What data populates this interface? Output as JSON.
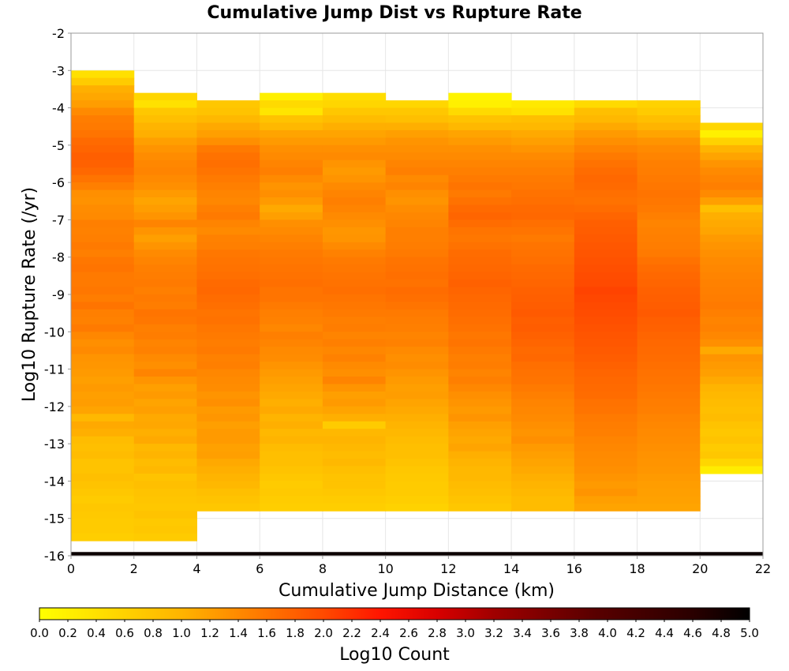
{
  "chart_data": {
    "type": "heatmap",
    "title": "Cumulative Jump Dist vs Rupture Rate",
    "xlabel": "Cumulative Jump Distance (km)",
    "ylabel": "Log10 Rupture Rate (/yr)",
    "colorbar_label": "Log10 Count",
    "xlim": [
      0,
      22
    ],
    "ylim": [
      -16,
      -2
    ],
    "x_ticks": [
      "0",
      "2",
      "4",
      "6",
      "8",
      "10",
      "12",
      "14",
      "16",
      "18",
      "20",
      "22"
    ],
    "y_ticks": [
      "-2",
      "-3",
      "-4",
      "-5",
      "-6",
      "-7",
      "-8",
      "-9",
      "-10",
      "-11",
      "-12",
      "-13",
      "-14",
      "-15",
      "-16"
    ],
    "colorbar_ticks": [
      "0.0",
      "0.2",
      "0.4",
      "0.6",
      "0.8",
      "1.0",
      "1.2",
      "1.4",
      "1.6",
      "1.8",
      "2.0",
      "2.2",
      "2.4",
      "2.6",
      "2.8",
      "3.0",
      "3.2",
      "3.4",
      "3.6",
      "3.8",
      "4.0",
      "4.2",
      "4.4",
      "4.6",
      "4.8",
      "5.0"
    ],
    "color_range": [
      0,
      5
    ],
    "grid": true,
    "x_bin_edges": [
      0,
      2,
      4,
      6,
      8,
      10,
      12,
      14,
      16,
      18,
      20,
      22
    ],
    "y_bin_size": 0.2,
    "columns": [
      {
        "x_start": 0,
        "x_end": 2,
        "top_rate": -3.0,
        "values": [
          0.42,
          0.7,
          1.05,
          1.12,
          1.22,
          1.4,
          1.52,
          1.55,
          1.6,
          1.7,
          1.75,
          1.8,
          1.78,
          1.72,
          1.6,
          1.5,
          1.35,
          1.32,
          1.38,
          1.4,
          1.5,
          1.48,
          1.5,
          1.55,
          1.5,
          1.58,
          1.6,
          1.55,
          1.55,
          1.58,
          1.52,
          1.6,
          1.5,
          1.48,
          1.55,
          1.42,
          1.35,
          1.4,
          1.3,
          1.28,
          1.25,
          1.2,
          1.25,
          1.2,
          1.22,
          1.15,
          0.95,
          1.1,
          1.05,
          0.9,
          0.85,
          0.9,
          0.8,
          0.8,
          0.85,
          0.8,
          0.75,
          0.7,
          0.75,
          0.72,
          0.7,
          0.7,
          0.65
        ]
      },
      {
        "x_start": 2,
        "x_end": 4,
        "top_rate": -3.6,
        "values": [
          0.55,
          0.4,
          0.75,
          0.85,
          1.0,
          1.05,
          1.2,
          1.3,
          1.38,
          1.42,
          1.45,
          1.4,
          1.35,
          1.25,
          1.15,
          1.22,
          1.3,
          1.45,
          1.3,
          1.2,
          1.3,
          1.4,
          1.45,
          1.5,
          1.52,
          1.55,
          1.5,
          1.55,
          1.52,
          1.6,
          1.58,
          1.5,
          1.52,
          1.45,
          1.48,
          1.4,
          1.35,
          1.45,
          1.3,
          1.2,
          1.25,
          1.15,
          1.2,
          1.1,
          1.12,
          1.05,
          1.1,
          0.95,
          1.0,
          0.9,
          0.95,
          0.8,
          0.85,
          0.8,
          0.78,
          0.75,
          0.8,
          0.72,
          0.75,
          0.7
        ]
      },
      {
        "x_start": 4,
        "x_end": 6,
        "top_rate": -3.8,
        "values": [
          0.75,
          0.8,
          0.95,
          1.1,
          1.2,
          1.35,
          1.55,
          1.62,
          1.65,
          1.6,
          1.55,
          1.5,
          1.45,
          1.42,
          1.5,
          1.55,
          1.45,
          1.4,
          1.48,
          1.5,
          1.58,
          1.6,
          1.62,
          1.65,
          1.7,
          1.72,
          1.68,
          1.65,
          1.6,
          1.62,
          1.58,
          1.55,
          1.52,
          1.55,
          1.48,
          1.5,
          1.42,
          1.4,
          1.38,
          1.3,
          1.35,
          1.25,
          1.28,
          1.2,
          1.25,
          1.25,
          1.18,
          1.2,
          1.1,
          1.05,
          1.0,
          0.95,
          0.85,
          0.8,
          0.75
        ]
      },
      {
        "x_start": 6,
        "x_end": 8,
        "top_rate": -3.6,
        "values": [
          0.2,
          0.5,
          0.35,
          0.8,
          0.95,
          1.15,
          1.25,
          1.35,
          1.4,
          1.45,
          1.5,
          1.4,
          1.3,
          1.35,
          1.25,
          1.1,
          1.2,
          1.35,
          1.4,
          1.45,
          1.5,
          1.55,
          1.58,
          1.6,
          1.62,
          1.65,
          1.6,
          1.6,
          1.55,
          1.5,
          1.48,
          1.42,
          1.5,
          1.45,
          1.4,
          1.38,
          1.3,
          1.25,
          1.2,
          1.15,
          1.1,
          1.05,
          1.1,
          1.0,
          1.05,
          0.95,
          1.0,
          0.9,
          0.85,
          0.85,
          0.8,
          0.75,
          0.7,
          0.72,
          0.68,
          0.65
        ]
      },
      {
        "x_start": 8,
        "x_end": 10,
        "top_rate": -3.6,
        "values": [
          0.45,
          0.55,
          0.75,
          0.9,
          1.05,
          1.15,
          1.25,
          1.35,
          1.4,
          1.3,
          1.25,
          1.3,
          1.4,
          1.45,
          1.5,
          1.45,
          1.4,
          1.35,
          1.28,
          1.3,
          1.4,
          1.48,
          1.55,
          1.58,
          1.6,
          1.62,
          1.65,
          1.6,
          1.58,
          1.55,
          1.5,
          1.52,
          1.45,
          1.5,
          1.42,
          1.48,
          1.4,
          1.35,
          1.45,
          1.3,
          1.2,
          1.25,
          1.15,
          1.05,
          0.7,
          0.95,
          1.0,
          0.95,
          0.9,
          0.95,
          0.85,
          0.8,
          0.8,
          0.75,
          0.7,
          0.65
        ]
      },
      {
        "x_start": 10,
        "x_end": 12,
        "top_rate": -3.8,
        "values": [
          0.55,
          0.75,
          0.85,
          1.05,
          1.2,
          1.3,
          1.35,
          1.4,
          1.45,
          1.5,
          1.4,
          1.45,
          1.35,
          1.3,
          1.38,
          1.42,
          1.45,
          1.5,
          1.5,
          1.52,
          1.55,
          1.6,
          1.62,
          1.65,
          1.62,
          1.68,
          1.65,
          1.6,
          1.55,
          1.52,
          1.5,
          1.45,
          1.48,
          1.4,
          1.35,
          1.38,
          1.3,
          1.25,
          1.2,
          1.22,
          1.15,
          1.1,
          1.05,
          1.0,
          0.95,
          0.9,
          0.85,
          0.85,
          0.8,
          0.75,
          0.72,
          0.7,
          0.7,
          0.65,
          0.6
        ]
      },
      {
        "x_start": 12,
        "x_end": 14,
        "top_rate": -3.6,
        "values": [
          0.15,
          0.2,
          0.5,
          0.8,
          0.95,
          1.15,
          1.25,
          1.35,
          1.4,
          1.45,
          1.5,
          1.55,
          1.6,
          1.55,
          1.62,
          1.7,
          1.75,
          1.68,
          1.6,
          1.58,
          1.62,
          1.68,
          1.7,
          1.72,
          1.75,
          1.78,
          1.75,
          1.72,
          1.7,
          1.68,
          1.65,
          1.62,
          1.58,
          1.6,
          1.55,
          1.5,
          1.52,
          1.45,
          1.5,
          1.42,
          1.35,
          1.3,
          1.25,
          1.3,
          1.2,
          1.15,
          1.1,
          1.15,
          1.05,
          1.0,
          0.95,
          0.95,
          0.9,
          0.85,
          0.8,
          0.75
        ]
      },
      {
        "x_start": 14,
        "x_end": 16,
        "top_rate": -3.8,
        "values": [
          0.3,
          0.4,
          0.85,
          0.95,
          1.1,
          1.2,
          1.3,
          1.4,
          1.45,
          1.5,
          1.55,
          1.58,
          1.62,
          1.65,
          1.7,
          1.72,
          1.65,
          1.6,
          1.55,
          1.6,
          1.62,
          1.65,
          1.7,
          1.72,
          1.75,
          1.78,
          1.8,
          1.82,
          1.85,
          1.8,
          1.82,
          1.78,
          1.75,
          1.7,
          1.72,
          1.65,
          1.62,
          1.6,
          1.55,
          1.5,
          1.45,
          1.42,
          1.4,
          1.35,
          1.3,
          1.35,
          1.25,
          1.2,
          1.15,
          1.1,
          1.05,
          1.0,
          0.95,
          0.9,
          0.9
        ]
      },
      {
        "x_start": 16,
        "x_end": 18,
        "top_rate": -3.8,
        "values": [
          0.5,
          0.85,
          0.95,
          1.1,
          1.25,
          1.35,
          1.45,
          1.55,
          1.62,
          1.68,
          1.72,
          1.7,
          1.65,
          1.62,
          1.68,
          1.75,
          1.8,
          1.82,
          1.85,
          1.88,
          1.9,
          1.92,
          1.95,
          1.98,
          2.0,
          2.05,
          2.02,
          2.0,
          1.98,
          1.95,
          1.92,
          1.9,
          1.88,
          1.85,
          1.82,
          1.78,
          1.75,
          1.72,
          1.7,
          1.68,
          1.62,
          1.6,
          1.55,
          1.52,
          1.5,
          1.45,
          1.42,
          1.4,
          1.38,
          1.35,
          1.3,
          1.25,
          1.3,
          1.2,
          1.15
        ]
      },
      {
        "x_start": 18,
        "x_end": 20,
        "top_rate": -3.8,
        "values": [
          0.6,
          0.7,
          0.85,
          1.0,
          1.15,
          1.3,
          1.4,
          1.45,
          1.5,
          1.52,
          1.55,
          1.58,
          1.6,
          1.58,
          1.55,
          1.5,
          1.45,
          1.48,
          1.5,
          1.52,
          1.55,
          1.62,
          1.68,
          1.72,
          1.75,
          1.78,
          1.8,
          1.82,
          1.85,
          1.8,
          1.78,
          1.75,
          1.72,
          1.7,
          1.68,
          1.65,
          1.62,
          1.6,
          1.58,
          1.55,
          1.52,
          1.5,
          1.45,
          1.42,
          1.4,
          1.38,
          1.35,
          1.32,
          1.3,
          1.28,
          1.25,
          1.22,
          1.2,
          1.18,
          1.15
        ]
      },
      {
        "x_start": 20,
        "x_end": 22,
        "top_rate": -4.4,
        "values": [
          0.55,
          0.2,
          0.6,
          1.0,
          1.15,
          1.3,
          1.4,
          1.45,
          1.5,
          1.4,
          1.2,
          0.85,
          1.05,
          1.1,
          1.15,
          1.25,
          1.3,
          1.35,
          1.4,
          1.42,
          1.45,
          1.48,
          1.5,
          1.52,
          1.55,
          1.5,
          1.45,
          1.48,
          1.42,
          1.35,
          1.1,
          1.3,
          1.25,
          1.2,
          1.1,
          1.0,
          0.95,
          0.9,
          0.85,
          0.9,
          0.8,
          0.75,
          0.8,
          0.7,
          0.75,
          0.55,
          0.25
        ]
      }
    ],
    "bottom_row": {
      "rate_bin": [
        -16.0,
        -15.9
      ],
      "value": 4.9
    }
  }
}
